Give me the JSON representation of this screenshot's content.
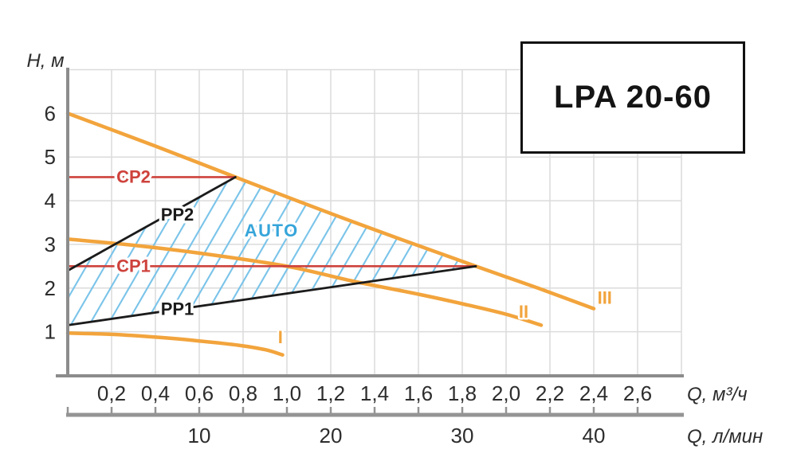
{
  "title_box": {
    "label": "LPA 20-60"
  },
  "colors": {
    "orange": "#F2A43C",
    "red": "#CE423C",
    "black_line": "#1b1b1b",
    "hatch_blue": "#79C3E9",
    "auto_blue": "#36A5DA",
    "grid": "#DBDBDB",
    "axis_dark": "#8C8C8C",
    "bar_gray": "#949494",
    "text": "#2d2d2d"
  },
  "chart_data": {
    "type": "line",
    "title": "LPA 20-60",
    "grid": true,
    "y_axis": {
      "label": "H, м",
      "tick_labels": [
        "1",
        "2",
        "3",
        "4",
        "5",
        "6"
      ],
      "tick_values": [
        1,
        2,
        3,
        4,
        5,
        6
      ],
      "range": [
        0,
        7
      ]
    },
    "x_axis_primary": {
      "label": "Q, м³/ч",
      "tick_labels": [
        "0,2",
        "0,4",
        "0,6",
        "0,8",
        "1,0",
        "1,2",
        "1,4",
        "1,6",
        "1,8",
        "2,0",
        "2,2",
        "2,4",
        "2,6"
      ],
      "tick_values": [
        0.2,
        0.4,
        0.6,
        0.8,
        1.0,
        1.2,
        1.4,
        1.6,
        1.8,
        2.0,
        2.2,
        2.4,
        2.6
      ],
      "range": [
        0,
        2.8
      ]
    },
    "x_axis_secondary": {
      "label": "Q, л/мин",
      "tick_labels": [
        "10",
        "20",
        "30",
        "40"
      ],
      "tick_values_lmin": [
        10,
        20,
        30,
        40
      ],
      "tick_positions_m3h": [
        0.6,
        1.2,
        1.8,
        2.4
      ],
      "minor_tick_positions_m3h": [
        0,
        0.2,
        0.4,
        0.6,
        0.8,
        1.0,
        1.2,
        1.4,
        1.6,
        1.8,
        2.0,
        2.2,
        2.4,
        2.6
      ]
    },
    "series": [
      {
        "name": "I",
        "label": "I",
        "color_key": "orange",
        "points": [
          [
            0,
            0.97
          ],
          [
            0.2,
            0.94
          ],
          [
            0.42,
            0.87
          ],
          [
            0.6,
            0.79
          ],
          [
            0.78,
            0.69
          ],
          [
            0.9,
            0.59
          ],
          [
            0.98,
            0.47
          ]
        ],
        "label_pos": {
          "q": 0.97,
          "h": 0.88
        }
      },
      {
        "name": "II",
        "label": "II",
        "color_key": "orange",
        "points": [
          [
            0,
            3.12
          ],
          [
            0.3,
            2.98
          ],
          [
            0.6,
            2.8
          ],
          [
            1.0,
            2.5
          ],
          [
            1.3,
            2.16
          ],
          [
            1.6,
            1.86
          ],
          [
            1.8,
            1.64
          ],
          [
            2.0,
            1.4
          ],
          [
            2.16,
            1.15
          ]
        ],
        "label_pos": {
          "q": 2.08,
          "h": 1.47
        }
      },
      {
        "name": "III",
        "label": "III",
        "color_key": "orange",
        "points": [
          [
            0,
            6.0
          ],
          [
            0.4,
            5.25
          ],
          [
            0.765,
            4.54
          ],
          [
            1.3,
            3.52
          ],
          [
            1.862,
            2.5
          ],
          [
            2.15,
            1.99
          ],
          [
            2.4,
            1.53
          ]
        ],
        "label_pos": {
          "q": 2.45,
          "h": 1.79
        }
      }
    ],
    "limit_lines": [
      {
        "name": "CP1",
        "label": "CP1",
        "h": 2.5,
        "q_from": 0,
        "q_to": 1.862,
        "color_key": "red",
        "label_pos": {
          "q": 0.3,
          "h": 2.52
        }
      },
      {
        "name": "CP2",
        "label": "CP2",
        "h": 4.54,
        "q_from": 0,
        "q_to": 0.765,
        "color_key": "red",
        "label_pos": {
          "q": 0.3,
          "h": 4.56
        }
      }
    ],
    "program_lines": [
      {
        "name": "PP1",
        "label": "PP1",
        "from": [
          0,
          1.15
        ],
        "to": [
          1.862,
          2.5
        ],
        "color_key": "black_line",
        "label_pos": {
          "q": 0.5,
          "h": 1.53
        }
      },
      {
        "name": "PP2",
        "label": "PP2",
        "from": [
          0,
          2.4
        ],
        "to": [
          0.765,
          4.54
        ],
        "color_key": "black_line",
        "label_pos": {
          "q": 0.5,
          "h": 3.69
        }
      }
    ],
    "auto_region": {
      "label": "AUTO",
      "label_pos": {
        "q": 0.93,
        "h": 3.33
      },
      "polygon": [
        [
          0,
          2.4
        ],
        [
          0.765,
          4.54
        ],
        [
          1.862,
          2.5
        ],
        [
          0,
          1.15
        ]
      ],
      "curve_control": [
        1.31,
        3.48
      ]
    }
  }
}
